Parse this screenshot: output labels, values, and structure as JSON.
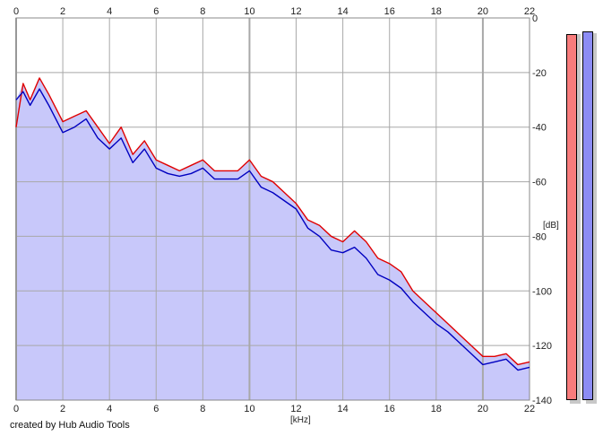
{
  "credit": "created by Hub Audio Tools",
  "colors": {
    "background": "#ffffff",
    "fill": "#c8c8fa",
    "grid": "#a8a8a8",
    "left_channel": "#e00000",
    "right_channel": "#0000c0",
    "meter_left": "#f87c7c",
    "meter_right": "#8c8cf4"
  },
  "chart_data": {
    "type": "area",
    "xlabel": "[kHz]",
    "ylabel": "[dB]",
    "xlim": [
      0,
      22
    ],
    "ylim": [
      -140,
      0
    ],
    "x_ticks": [
      "0",
      "2",
      "4",
      "6",
      "8",
      "10",
      "12",
      "14",
      "16",
      "18",
      "20",
      "22"
    ],
    "y_ticks": [
      "0",
      "-20",
      "-40",
      "-60",
      "-80",
      "-100",
      "-120",
      "-140"
    ],
    "grid": true,
    "series": [
      {
        "color": "#e00000",
        "points": [
          [
            0.0,
            -40
          ],
          [
            0.3,
            -24
          ],
          [
            0.6,
            -30
          ],
          [
            1.0,
            -22
          ],
          [
            1.4,
            -28
          ],
          [
            2.0,
            -38
          ],
          [
            2.5,
            -36
          ],
          [
            3.0,
            -34
          ],
          [
            3.5,
            -40
          ],
          [
            4.0,
            -46
          ],
          [
            4.5,
            -40
          ],
          [
            5.0,
            -50
          ],
          [
            5.5,
            -45
          ],
          [
            6.0,
            -52
          ],
          [
            6.5,
            -54
          ],
          [
            7.0,
            -56
          ],
          [
            7.5,
            -54
          ],
          [
            8.0,
            -52
          ],
          [
            8.5,
            -56
          ],
          [
            9.0,
            -56
          ],
          [
            9.5,
            -56
          ],
          [
            10.0,
            -52
          ],
          [
            10.5,
            -58
          ],
          [
            11.0,
            -60
          ],
          [
            11.5,
            -64
          ],
          [
            12.0,
            -68
          ],
          [
            12.5,
            -74
          ],
          [
            13.0,
            -76
          ],
          [
            13.5,
            -80
          ],
          [
            14.0,
            -82
          ],
          [
            14.5,
            -78
          ],
          [
            15.0,
            -82
          ],
          [
            15.5,
            -88
          ],
          [
            16.0,
            -90
          ],
          [
            16.5,
            -93
          ],
          [
            17.0,
            -100
          ],
          [
            17.5,
            -104
          ],
          [
            18.0,
            -108
          ],
          [
            18.5,
            -112
          ],
          [
            19.0,
            -116
          ],
          [
            19.5,
            -120
          ],
          [
            20.0,
            -124
          ],
          [
            20.5,
            -124
          ],
          [
            21.0,
            -123
          ],
          [
            21.5,
            -127
          ],
          [
            22.0,
            -126
          ]
        ]
      },
      {
        "color": "#0000c0",
        "points": [
          [
            0.0,
            -30
          ],
          [
            0.3,
            -27
          ],
          [
            0.6,
            -32
          ],
          [
            1.0,
            -26
          ],
          [
            1.4,
            -32
          ],
          [
            2.0,
            -42
          ],
          [
            2.5,
            -40
          ],
          [
            3.0,
            -37
          ],
          [
            3.5,
            -44
          ],
          [
            4.0,
            -48
          ],
          [
            4.5,
            -44
          ],
          [
            5.0,
            -53
          ],
          [
            5.5,
            -48
          ],
          [
            6.0,
            -55
          ],
          [
            6.5,
            -57
          ],
          [
            7.0,
            -58
          ],
          [
            7.5,
            -57
          ],
          [
            8.0,
            -55
          ],
          [
            8.5,
            -59
          ],
          [
            9.0,
            -59
          ],
          [
            9.5,
            -59
          ],
          [
            10.0,
            -56
          ],
          [
            10.5,
            -62
          ],
          [
            11.0,
            -64
          ],
          [
            11.5,
            -67
          ],
          [
            12.0,
            -70
          ],
          [
            12.5,
            -77
          ],
          [
            13.0,
            -80
          ],
          [
            13.5,
            -85
          ],
          [
            14.0,
            -86
          ],
          [
            14.5,
            -84
          ],
          [
            15.0,
            -88
          ],
          [
            15.5,
            -94
          ],
          [
            16.0,
            -96
          ],
          [
            16.5,
            -99
          ],
          [
            17.0,
            -104
          ],
          [
            17.5,
            -108
          ],
          [
            18.0,
            -112
          ],
          [
            18.5,
            -115
          ],
          [
            19.0,
            -119
          ],
          [
            19.5,
            -123
          ],
          [
            20.0,
            -127
          ],
          [
            20.5,
            -126
          ],
          [
            21.0,
            -125
          ],
          [
            21.5,
            -129
          ],
          [
            22.0,
            -128
          ]
        ]
      }
    ]
  },
  "meters": [
    {
      "channel": "left",
      "level_db": -6
    },
    {
      "channel": "right",
      "level_db": -5
    }
  ]
}
